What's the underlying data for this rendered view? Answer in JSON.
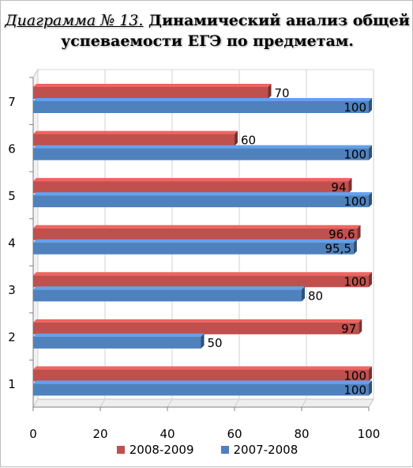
{
  "title": {
    "prefix": "Диаграмма № 13.",
    "main": " Динамический анализ общей успеваемости ЕГЭ по предметам."
  },
  "colors": {
    "series_2008_2009": "#c0504d",
    "series_2007_2008": "#4f81bd",
    "grid": "#d0d0d0"
  },
  "chart_data": {
    "type": "bar",
    "orientation": "horizontal",
    "categories": [
      "1",
      "2",
      "3",
      "4",
      "5",
      "6",
      "7"
    ],
    "series": [
      {
        "name": "2008-2009",
        "values": [
          100,
          97,
          100,
          96.6,
          94,
          60,
          70
        ],
        "labels": [
          "100",
          "97",
          "100",
          "96,6",
          "94",
          "60",
          "70"
        ]
      },
      {
        "name": "2007-2008",
        "values": [
          100,
          50,
          80,
          95.5,
          100,
          100,
          100
        ],
        "labels": [
          "100",
          "50",
          "80",
          "95,5",
          "100",
          "100",
          "100"
        ]
      }
    ],
    "x_ticks": [
      "0",
      "20",
      "40",
      "60",
      "80",
      "100"
    ],
    "xlim": [
      0,
      100
    ],
    "grid": true,
    "legend": "bottom"
  }
}
